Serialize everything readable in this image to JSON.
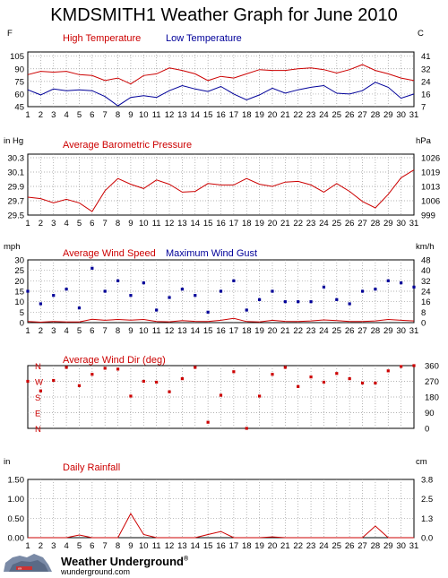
{
  "page": {
    "title": "KMDSMITH1 Weather Graph for June 2010",
    "logo_name": "Weather Underground",
    "logo_trademark": "®",
    "logo_url": "wunderground.com"
  },
  "chart_data": [
    {
      "type": "line",
      "title": "",
      "left_unit": "F",
      "right_unit": "C",
      "legend": [
        {
          "label": "High Temperature",
          "color": "#cc0000"
        },
        {
          "label": "Low Temperature",
          "color": "#000099"
        }
      ],
      "x": [
        1,
        2,
        3,
        4,
        5,
        6,
        7,
        8,
        9,
        10,
        11,
        12,
        13,
        14,
        15,
        16,
        17,
        18,
        19,
        20,
        21,
        22,
        23,
        24,
        25,
        26,
        27,
        28,
        29,
        30,
        31
      ],
      "series": [
        {
          "name": "High Temperature",
          "color": "#cc0000",
          "values": [
            83,
            87,
            86,
            87,
            83,
            82,
            76,
            79,
            72,
            82,
            84,
            91,
            88,
            84,
            76,
            81,
            79,
            84,
            89,
            88,
            88,
            90,
            91,
            89,
            85,
            89,
            95,
            88,
            84,
            79,
            76
          ]
        },
        {
          "name": "Low Temperature",
          "color": "#000099",
          "values": [
            65,
            59,
            66,
            64,
            65,
            64,
            57,
            46,
            56,
            58,
            56,
            64,
            70,
            66,
            63,
            69,
            60,
            53,
            59,
            67,
            61,
            65,
            68,
            70,
            61,
            60,
            64,
            74,
            68,
            55,
            60
          ]
        }
      ],
      "ylim": [
        45,
        110
      ],
      "left_ticks": [
        "105",
        "90",
        "75",
        "60",
        "45"
      ],
      "left_tick_values": [
        105,
        90,
        75,
        60,
        45
      ],
      "right_ticks": [
        "41",
        "32",
        "24",
        "16",
        "7"
      ],
      "grid": true
    },
    {
      "type": "line",
      "title": "Average Barometric Pressure",
      "left_unit": "in Hg",
      "right_unit": "hPa",
      "x": [
        1,
        2,
        3,
        4,
        5,
        6,
        7,
        8,
        9,
        10,
        11,
        12,
        13,
        14,
        15,
        16,
        17,
        18,
        19,
        20,
        21,
        22,
        23,
        24,
        25,
        26,
        27,
        28,
        29,
        30,
        31
      ],
      "series": [
        {
          "name": "Average Barometric Pressure",
          "color": "#cc0000",
          "values": [
            29.75,
            29.73,
            29.67,
            29.72,
            29.67,
            29.55,
            29.84,
            30.01,
            29.93,
            29.87,
            29.99,
            29.93,
            29.82,
            29.83,
            29.94,
            29.92,
            29.92,
            30.01,
            29.93,
            29.9,
            29.96,
            29.97,
            29.92,
            29.82,
            29.94,
            29.83,
            29.69,
            29.6,
            29.79,
            30.02,
            30.13
          ]
        }
      ],
      "ylim": [
        29.5,
        30.35
      ],
      "left_ticks": [
        "30.3",
        "30.1",
        "29.9",
        "29.7",
        "29.5"
      ],
      "left_tick_values": [
        30.3,
        30.1,
        29.9,
        29.7,
        29.5
      ],
      "right_ticks": [
        "1026",
        "1019",
        "1013",
        "1006",
        "999"
      ],
      "grid": true
    },
    {
      "type": "scatter",
      "title": "",
      "left_unit": "mph",
      "right_unit": "km/h",
      "legend": [
        {
          "label": "Average Wind Speed",
          "color": "#cc0000"
        },
        {
          "label": "Maximum Wind Gust",
          "color": "#000099"
        }
      ],
      "x": [
        1,
        2,
        3,
        4,
        5,
        6,
        7,
        8,
        9,
        10,
        11,
        12,
        13,
        14,
        15,
        16,
        17,
        18,
        19,
        20,
        21,
        22,
        23,
        24,
        25,
        26,
        27,
        28,
        29,
        30,
        31
      ],
      "series": [
        {
          "name": "Average Wind Speed",
          "color": "#cc0000",
          "style": "line",
          "values": [
            0.5,
            0.2,
            0.5,
            0.3,
            0.3,
            1.6,
            1.1,
            1.5,
            1.2,
            1.5,
            0.5,
            0.4,
            1.0,
            0.6,
            0.5,
            1.1,
            2.0,
            0.5,
            0.3,
            1.1,
            0.6,
            0.5,
            0.8,
            1.3,
            1.0,
            0.5,
            0.5,
            0.8,
            1.5,
            1.1,
            0.8
          ]
        },
        {
          "name": "Maximum Wind Gust",
          "color": "#000099",
          "style": "dots",
          "values": [
            15,
            9,
            13,
            16,
            7,
            26,
            15,
            20,
            13,
            19,
            6,
            12,
            16,
            13,
            5,
            15,
            20,
            6,
            11,
            15,
            10,
            10,
            10,
            17,
            11,
            9,
            15,
            16,
            20,
            19,
            17
          ]
        }
      ],
      "ylim": [
        0,
        30
      ],
      "left_ticks": [
        "30",
        "25",
        "20",
        "15",
        "10",
        "5",
        "0"
      ],
      "left_tick_values": [
        30,
        25,
        20,
        15,
        10,
        5,
        0
      ],
      "right_ticks": [
        "48",
        "40",
        "32",
        "24",
        "16",
        "8",
        "0"
      ],
      "grid": true
    },
    {
      "type": "scatter",
      "title": "Average Wind Dir (deg)",
      "direction_labels": [
        "N",
        "W",
        "S",
        "E",
        "N"
      ],
      "right_ticks": [
        "360",
        "270",
        "180",
        "90",
        "0"
      ],
      "x": [
        1,
        2,
        3,
        4,
        5,
        6,
        7,
        8,
        9,
        10,
        11,
        12,
        13,
        14,
        15,
        16,
        17,
        18,
        19,
        20,
        21,
        22,
        23,
        24,
        25,
        26,
        27,
        28,
        29,
        30,
        31
      ],
      "series": [
        {
          "name": "Average Wind Dir (deg)",
          "color": "#cc0000",
          "values": [
            270,
            215,
            275,
            350,
            245,
            310,
            345,
            340,
            185,
            270,
            265,
            210,
            285,
            350,
            35,
            190,
            325,
            0,
            185,
            310,
            350,
            240,
            295,
            265,
            315,
            285,
            260,
            260,
            330,
            355,
            360
          ]
        }
      ],
      "ylim": [
        0,
        360
      ],
      "grid": true
    },
    {
      "type": "line",
      "title": "Daily Rainfall",
      "left_unit": "in",
      "right_unit": "cm",
      "x": [
        1,
        2,
        3,
        4,
        5,
        6,
        7,
        8,
        9,
        10,
        11,
        12,
        13,
        14,
        15,
        16,
        17,
        18,
        19,
        20,
        21,
        22,
        23,
        24,
        25,
        26,
        27,
        28,
        29,
        30,
        31
      ],
      "series": [
        {
          "name": "Daily Rainfall",
          "color": "#cc0000",
          "values": [
            0,
            0,
            0,
            0,
            0.07,
            0,
            0,
            0,
            0.62,
            0.08,
            0,
            0,
            0,
            0,
            0.08,
            0.16,
            0,
            0,
            0,
            0.02,
            0,
            0,
            0,
            0,
            0,
            0,
            0,
            0.3,
            0,
            0,
            0
          ]
        }
      ],
      "ylim": [
        0,
        1.5
      ],
      "left_ticks": [
        "1.50",
        "1.00",
        "0.50",
        "0.00"
      ],
      "left_tick_values": [
        1.5,
        1.0,
        0.5,
        0.0
      ],
      "right_ticks": [
        "3.8",
        "2.5",
        "1.3",
        "0.0"
      ],
      "grid": true
    }
  ]
}
